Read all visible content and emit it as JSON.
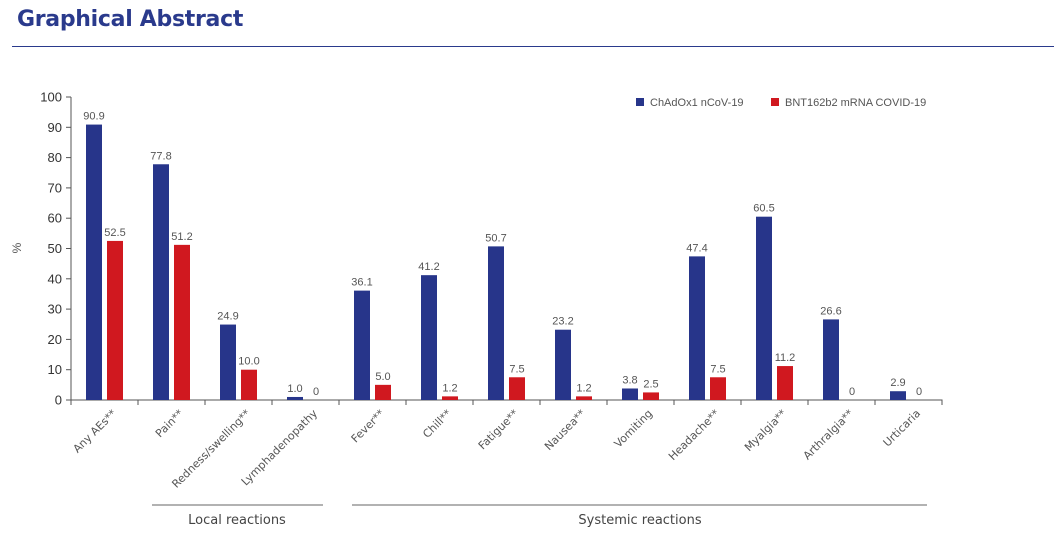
{
  "header": {
    "title": "Graphical Abstract"
  },
  "colors": {
    "series1": "#27358a",
    "series2": "#d0181f",
    "accent": "#2a3a8c"
  },
  "chart_data": {
    "type": "bar",
    "title": "",
    "xlabel": "",
    "ylabel": "%",
    "ylim": [
      0,
      100
    ],
    "yticks": [
      0,
      10,
      20,
      30,
      40,
      50,
      60,
      70,
      80,
      90,
      100
    ],
    "legend_position": "top-right",
    "categories": [
      "Any AEs**",
      "Pain**",
      "Redness/swelling**",
      "Lymphadenopathy",
      "Fever**",
      "Chill**",
      "Fatigue**",
      "Nausea**",
      "Vomiting",
      "Headache**",
      "Myalgia**",
      "Arthralgia**",
      "Urticaria"
    ],
    "series": [
      {
        "name": "ChAdOx1 nCoV-19",
        "values": [
          90.9,
          77.8,
          24.9,
          1.0,
          36.1,
          41.2,
          50.7,
          23.2,
          3.8,
          47.4,
          60.5,
          26.6,
          2.9
        ],
        "labels": [
          "90.9",
          "77.8",
          "24.9",
          "1.0",
          "36.1",
          "41.2",
          "50.7",
          "23.2",
          "3.8",
          "47.4",
          "60.5",
          "26.6",
          "2.9"
        ]
      },
      {
        "name": "BNT162b2 mRNA COVID-19",
        "values": [
          52.5,
          51.2,
          10.0,
          0,
          5.0,
          1.2,
          7.5,
          1.2,
          2.5,
          7.5,
          11.2,
          0,
          0
        ],
        "labels": [
          "52.5",
          "51.2",
          "10.0",
          "0",
          "5.0",
          "1.2",
          "7.5",
          "1.2",
          "2.5",
          "7.5",
          "11.2",
          "0",
          "0"
        ]
      }
    ],
    "groups": [
      {
        "label": "Local reactions",
        "from": 1,
        "to": 3
      },
      {
        "label": "Systemic reactions",
        "from": 4,
        "to": 12
      }
    ]
  }
}
